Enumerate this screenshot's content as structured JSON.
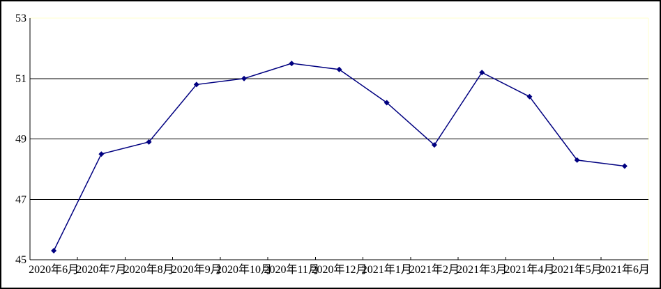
{
  "chart_data": {
    "type": "line",
    "title": "",
    "xlabel": "",
    "ylabel": "",
    "categories": [
      "2020年6月",
      "2020年7月",
      "2020年8月",
      "2020年9月",
      "2020年10月",
      "2020年11月",
      "2020年12月",
      "2021年1月",
      "2021年2月",
      "2021年3月",
      "2021年4月",
      "2021年5月",
      "2021年6月"
    ],
    "values": [
      45.3,
      48.5,
      48.9,
      50.8,
      51.0,
      51.5,
      51.3,
      50.2,
      48.8,
      51.2,
      50.4,
      48.3,
      48.1
    ],
    "ylim": [
      45,
      53
    ],
    "yticks": [
      45,
      47,
      49,
      51,
      53
    ],
    "grid": true,
    "legend": false,
    "marker": "diamond",
    "colors": {
      "line": "#000080",
      "marker": "#000080",
      "grid": "#000000",
      "axis": "#000000",
      "plot_border": "#ffffcc",
      "outer_border": "#000000",
      "background": "#ffffff"
    }
  }
}
